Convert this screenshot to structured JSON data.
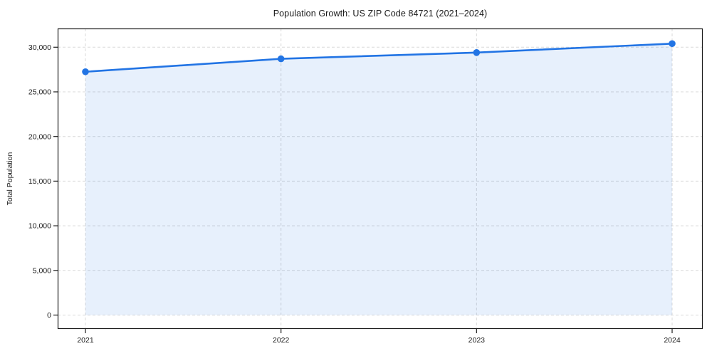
{
  "figure": {
    "title": "Population Growth: US ZIP Code 84721 (2021–2024)",
    "background": "#ffffff"
  },
  "chart_data": {
    "type": "area",
    "title": "Population Growth: US ZIP Code 84721 (2021–2024)",
    "xlabel": "",
    "ylabel": "Total Population",
    "x": [
      2021,
      2022,
      2023,
      2024
    ],
    "x_tick_labels": [
      "2021",
      "2022",
      "2023",
      "2024"
    ],
    "series": [
      {
        "name": "Total Population",
        "values": [
          27250,
          28700,
          29400,
          30400
        ]
      }
    ],
    "y_ticks": [
      0,
      5000,
      10000,
      15000,
      20000,
      25000,
      30000
    ],
    "y_tick_labels": [
      "0",
      "5,000",
      "10,000",
      "15,000",
      "20,000",
      "25,000",
      "30,000"
    ],
    "ylim": [
      -1500,
      32000
    ],
    "xlim": [
      2020.86,
      2024.16
    ],
    "grid": true,
    "grid_style": "dashed",
    "legend": "none",
    "line_color": "#2274e4",
    "marker_color": "#2274e4",
    "fill_color": "#2274e4",
    "fill_opacity": 0.11,
    "grid_color": "#d8d8d8",
    "spine_color": "#1a1a1a",
    "marker": "circle"
  }
}
